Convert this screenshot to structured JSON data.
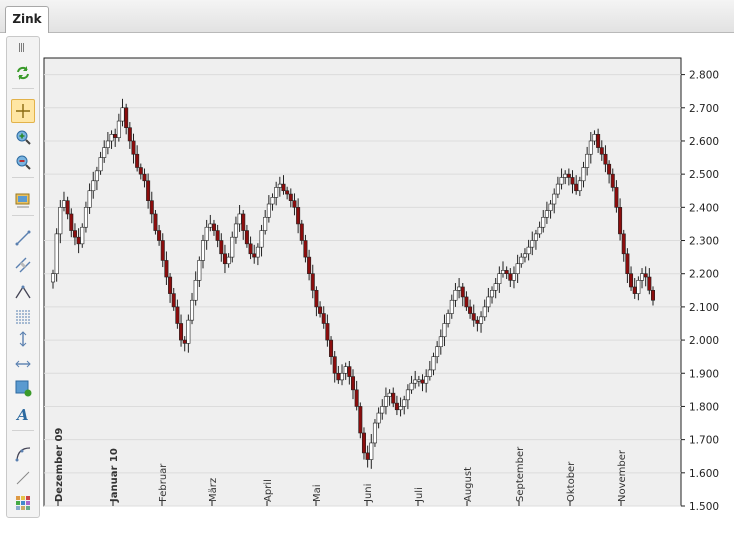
{
  "tab": {
    "label": "Zink"
  },
  "toolbar": [
    {
      "name": "refresh-icon",
      "active": false
    },
    {
      "name": "crosshair-icon",
      "active": true
    },
    {
      "name": "zoom-in-icon",
      "active": false
    },
    {
      "name": "zoom-out-icon",
      "active": false
    },
    {
      "name": "chart-settings-icon",
      "active": false
    },
    {
      "name": "trendline-icon",
      "active": false
    },
    {
      "name": "channel-icon",
      "active": false
    },
    {
      "name": "triangle-tool-icon",
      "active": false
    },
    {
      "name": "fibonacci-icon",
      "active": false
    },
    {
      "name": "vertical-line-icon",
      "active": false
    },
    {
      "name": "horizontal-line-icon",
      "active": false
    },
    {
      "name": "rectangle-add-icon",
      "active": false
    },
    {
      "name": "text-tool-icon",
      "active": false
    },
    {
      "name": "arc-tool-icon",
      "active": false
    },
    {
      "name": "pen-line-icon",
      "active": false
    },
    {
      "name": "color-grid-icon",
      "active": false
    }
  ],
  "chart_data": {
    "type": "candlestick",
    "title": "",
    "xlabel": "",
    "ylabel": "",
    "ylim": [
      1500,
      2850
    ],
    "y_ticks": [
      "1.500",
      "1.600",
      "1.700",
      "1.800",
      "1.900",
      "2.000",
      "2.100",
      "2.200",
      "2.300",
      "2.400",
      "2.500",
      "2.600",
      "2.700",
      "2.800"
    ],
    "x_labels": [
      {
        "label": "Dezember 09",
        "bold": true
      },
      {
        "label": "Januar 10",
        "bold": true
      },
      {
        "label": "Februar",
        "bold": false
      },
      {
        "label": "März",
        "bold": false
      },
      {
        "label": "April",
        "bold": false
      },
      {
        "label": "Mai",
        "bold": false
      },
      {
        "label": "Juni",
        "bold": false
      },
      {
        "label": "Juli",
        "bold": false
      },
      {
        "label": "August",
        "bold": false
      },
      {
        "label": "September",
        "bold": false
      },
      {
        "label": "Oktober",
        "bold": false
      },
      {
        "label": "November",
        "bold": false
      }
    ],
    "close_series": [
      2200,
      2320,
      2400,
      2420,
      2380,
      2330,
      2310,
      2290,
      2340,
      2400,
      2450,
      2480,
      2510,
      2550,
      2580,
      2600,
      2620,
      2610,
      2660,
      2700,
      2640,
      2600,
      2560,
      2520,
      2500,
      2480,
      2420,
      2380,
      2330,
      2300,
      2240,
      2190,
      2140,
      2100,
      2050,
      2000,
      1990,
      2060,
      2120,
      2180,
      2240,
      2300,
      2340,
      2350,
      2330,
      2300,
      2260,
      2230,
      2250,
      2310,
      2350,
      2380,
      2330,
      2290,
      2260,
      2250,
      2280,
      2330,
      2370,
      2410,
      2430,
      2460,
      2470,
      2450,
      2440,
      2420,
      2400,
      2350,
      2300,
      2250,
      2200,
      2150,
      2100,
      2080,
      2050,
      2000,
      1950,
      1900,
      1880,
      1900,
      1920,
      1890,
      1850,
      1800,
      1720,
      1660,
      1640,
      1690,
      1750,
      1780,
      1800,
      1830,
      1840,
      1810,
      1790,
      1800,
      1820,
      1850,
      1870,
      1880,
      1880,
      1870,
      1890,
      1910,
      1950,
      1980,
      2010,
      2050,
      2080,
      2120,
      2150,
      2160,
      2130,
      2100,
      2080,
      2060,
      2050,
      2070,
      2100,
      2130,
      2150,
      2170,
      2200,
      2210,
      2200,
      2180,
      2200,
      2230,
      2250,
      2260,
      2280,
      2300,
      2320,
      2340,
      2370,
      2390,
      2410,
      2440,
      2470,
      2490,
      2500,
      2490,
      2470,
      2450,
      2480,
      2520,
      2560,
      2600,
      2620,
      2580,
      2560,
      2530,
      2500,
      2460,
      2400,
      2320,
      2260,
      2200,
      2160,
      2140,
      2180,
      2200,
      2190,
      2150,
      2120
    ]
  }
}
